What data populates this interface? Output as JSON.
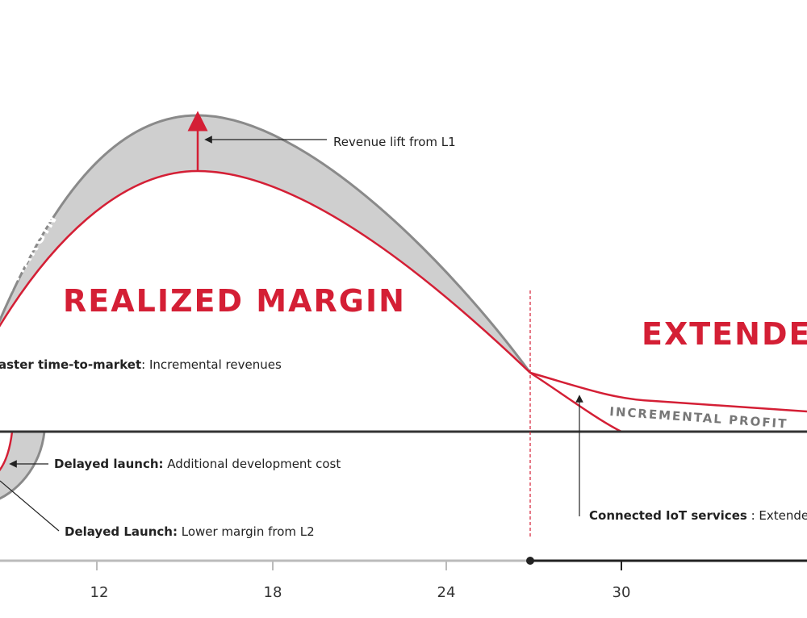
{
  "diagram": {
    "band_label": "N MARGIN",
    "main_label": "REALIZED MARGIN",
    "extended_label": "EXTENDE",
    "revenue_lift": "Revenue lift from L1",
    "incremental_profit": "INCREMENTAL PROFIT",
    "annotations": [
      {
        "bold": "aster time-to-market",
        "text": ": Incremental revenues"
      },
      {
        "bold": "Delayed launch:",
        "text": " Additional development cost"
      },
      {
        "bold": "Delayed Launch:",
        "text": " Lower margin from L2"
      },
      {
        "bold": "Connected IoT services",
        "text": " : Extende"
      }
    ],
    "x_ticks": [
      "12",
      "18",
      "24",
      "30"
    ]
  }
}
